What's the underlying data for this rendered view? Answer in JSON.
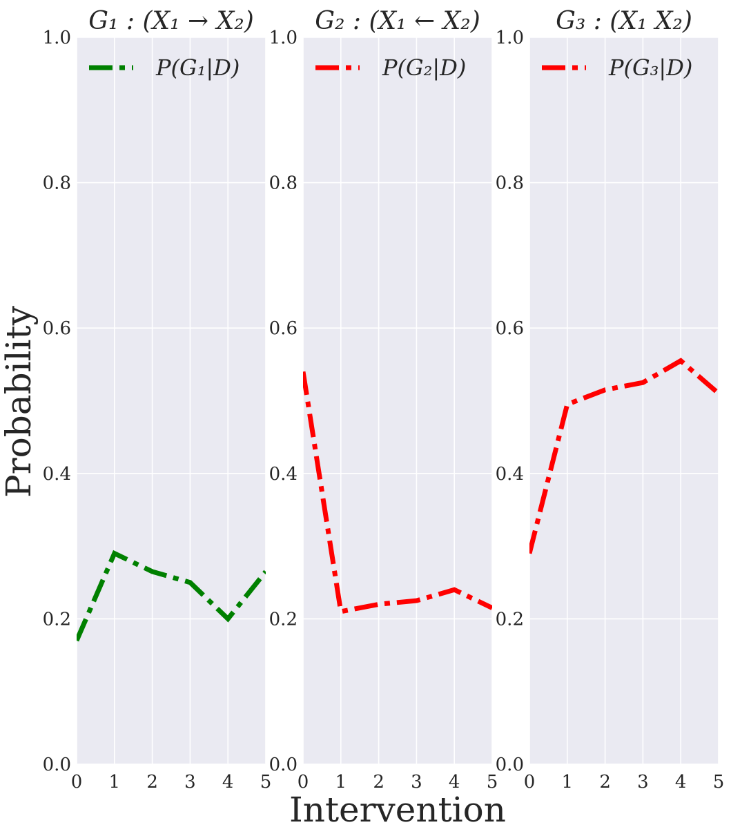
{
  "chart_data": [
    {
      "type": "line",
      "title": "G₁ : (X₁ → X₂)",
      "x": [
        0,
        1,
        2,
        3,
        4,
        5
      ],
      "series": [
        {
          "name": "P(G₁|D)",
          "values": [
            0.17,
            0.29,
            0.265,
            0.25,
            0.2,
            0.265
          ],
          "color": "#008000"
        }
      ],
      "xlim": [
        0,
        5
      ],
      "ylim": [
        0.0,
        1.0
      ],
      "xticks": [
        "0",
        "1",
        "2",
        "3",
        "4",
        "5"
      ],
      "yticks": [
        "0.0",
        "0.2",
        "0.4",
        "0.6",
        "0.8",
        "1.0"
      ],
      "grid": true,
      "legend_position": "top-left",
      "line_style": "dash-dot"
    },
    {
      "type": "line",
      "title": "G₂ : (X₁ ← X₂)",
      "x": [
        0,
        1,
        2,
        3,
        4,
        5
      ],
      "series": [
        {
          "name": "P(G₂|D)",
          "values": [
            0.54,
            0.21,
            0.22,
            0.225,
            0.24,
            0.215
          ],
          "color": "#ff0000"
        }
      ],
      "xlim": [
        0,
        5
      ],
      "ylim": [
        0.0,
        1.0
      ],
      "xticks": [
        "0",
        "1",
        "2",
        "3",
        "4",
        "5"
      ],
      "yticks": [
        "0.0",
        "0.2",
        "0.4",
        "0.6",
        "0.8",
        "1.0"
      ],
      "grid": true,
      "legend_position": "top-left",
      "line_style": "dash-dot"
    },
    {
      "type": "line",
      "title": "G₃ : (X₁ X₂)",
      "x": [
        0,
        1,
        2,
        3,
        4,
        5
      ],
      "series": [
        {
          "name": "P(G₃|D)",
          "values": [
            0.29,
            0.495,
            0.515,
            0.525,
            0.555,
            0.51
          ],
          "color": "#ff0000"
        }
      ],
      "xlim": [
        0,
        5
      ],
      "ylim": [
        0.0,
        1.0
      ],
      "xticks": [
        "0",
        "1",
        "2",
        "3",
        "4",
        "5"
      ],
      "yticks": [
        "0.0",
        "0.2",
        "0.4",
        "0.6",
        "0.8",
        "1.0"
      ],
      "grid": true,
      "legend_position": "top-left",
      "line_style": "dash-dot"
    }
  ],
  "figure": {
    "xlabel": "Intervention",
    "ylabel": "Probability",
    "background": "#eaeaf2",
    "grid_color": "#ffffff"
  }
}
